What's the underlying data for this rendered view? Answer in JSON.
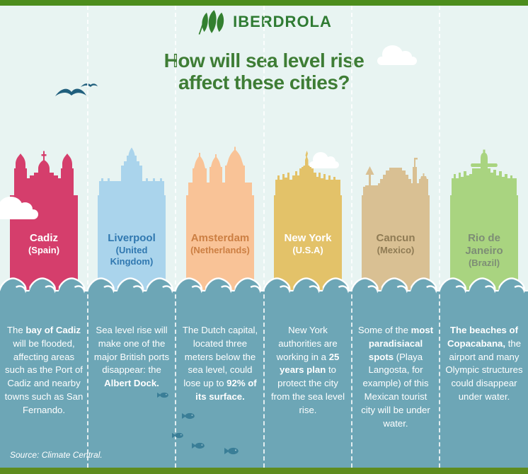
{
  "colors": {
    "top_bar": "#4c8d1d",
    "bottom_bar": "#5e8c1e",
    "header_bg": "#e8f4f2",
    "brand_green": "#2f7b33",
    "leaf_green": "#338030",
    "title_green": "#3e7d35",
    "water": "#6da6b6",
    "bird": "#205f7d",
    "fish": "#3a7e97",
    "cloud": "#ffffff",
    "divider": "#ffffff",
    "body_text": "#ffffff"
  },
  "header": {
    "brand": "IBERDROLA",
    "title_line1": "How will sea level rise",
    "title_line2": "affect these cities?"
  },
  "cities": [
    {
      "name": "Cadiz",
      "country": "(Spain)",
      "block_color": "#d53e6c",
      "label_color": "#ffffff",
      "icon": "cadiz-cathedral",
      "desc": [
        {
          "t": "The ",
          "b": false
        },
        {
          "t": "bay of Cadiz",
          "b": true
        },
        {
          "t": " will be flooded, affecting areas such as the Port of Cadiz and nearby towns such as San Fernando.",
          "b": false
        }
      ]
    },
    {
      "name": "Liverpool",
      "country": "(United Kingdom)",
      "block_color": "#aad4ec",
      "label_color": "#3078b0",
      "icon": "liver-building",
      "desc": [
        {
          "t": "Sea level rise will make one of the major British ports disappear: the ",
          "b": false
        },
        {
          "t": "Albert Dock.",
          "b": true
        }
      ]
    },
    {
      "name": "Amsterdam",
      "country": "(Netherlands)",
      "block_color": "#f9c397",
      "label_color": "#cc7f43",
      "icon": "amsterdam-church",
      "desc": [
        {
          "t": "The Dutch capital, located three meters below the sea level, could lose up to ",
          "b": false
        },
        {
          "t": "92% of its surface.",
          "b": true
        }
      ]
    },
    {
      "name": "New York",
      "country": "(U.S.A)",
      "block_color": "#e3c269",
      "label_color": "#ffffff",
      "icon": "statue-of-liberty-skyline",
      "desc": [
        {
          "t": "New York authorities are working in a ",
          "b": false
        },
        {
          "t": "25 years plan",
          "b": true
        },
        {
          "t": " to protect the city from the sea level rise.",
          "b": false
        }
      ]
    },
    {
      "name": "Cancun",
      "country": "(Mexico)",
      "block_color": "#d9c093",
      "label_color": "#8f7b54",
      "icon": "cancun-landmarks",
      "desc": [
        {
          "t": "Some of the ",
          "b": false
        },
        {
          "t": "most paradisiacal spots",
          "b": true
        },
        {
          "t": " (Playa Langosta, for example) of this Mexican tourist city will be under water.",
          "b": false
        }
      ]
    },
    {
      "name": "Rio de Janeiro",
      "country": "(Brazil)",
      "block_color": "#a9d480",
      "label_color": "#7d8d75",
      "icon": "christ-redeemer-skyline",
      "desc": [
        {
          "t": "The beaches of Copacabana,",
          "b": true
        },
        {
          "t": " the airport and many Olympic structures could disappear under water.",
          "b": false
        }
      ]
    }
  ],
  "source": "Source: Climate Central."
}
